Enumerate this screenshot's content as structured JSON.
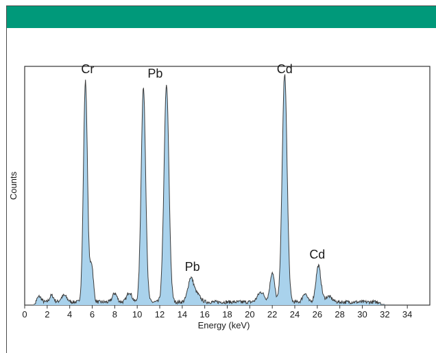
{
  "header": {
    "color": "#00997a"
  },
  "chart_data": {
    "type": "area",
    "title": "",
    "xlabel": "Energy (keV)",
    "ylabel": "Counts",
    "xlim": [
      0,
      36
    ],
    "ylim": [
      0,
      105
    ],
    "grid": false,
    "legend": "none",
    "fill_color": "#a9d2ec",
    "line_color": "#3a3a3a",
    "x_ticks": [
      "0",
      "2",
      "4",
      "6",
      "8",
      "10",
      "12",
      "14",
      "16",
      "18",
      "20",
      "22",
      "24",
      "26",
      "28",
      "30",
      "32",
      "34"
    ],
    "peaks": [
      {
        "center": 1.3,
        "height": 2.5,
        "width": 0.18
      },
      {
        "center": 2.4,
        "height": 3.0,
        "width": 0.18
      },
      {
        "center": 3.5,
        "height": 3.0,
        "width": 0.25
      },
      {
        "center": 5.4,
        "height": 100,
        "width": 0.18
      },
      {
        "center": 5.95,
        "height": 17,
        "width": 0.15
      },
      {
        "center": 8.0,
        "height": 4,
        "width": 0.2
      },
      {
        "center": 9.3,
        "height": 4.5,
        "width": 0.22
      },
      {
        "center": 10.55,
        "height": 97,
        "width": 0.2
      },
      {
        "center": 12.6,
        "height": 98,
        "width": 0.22
      },
      {
        "center": 14.75,
        "height": 10.5,
        "width": 0.25
      },
      {
        "center": 15.3,
        "height": 3.5,
        "width": 0.3
      },
      {
        "center": 21.0,
        "height": 4.5,
        "width": 0.3
      },
      {
        "center": 22.0,
        "height": 13.5,
        "width": 0.2
      },
      {
        "center": 23.1,
        "height": 103,
        "width": 0.22
      },
      {
        "center": 24.9,
        "height": 4.0,
        "width": 0.2
      },
      {
        "center": 26.1,
        "height": 16.5,
        "width": 0.22
      },
      {
        "center": 27.0,
        "height": 2.5,
        "width": 0.3
      }
    ],
    "annotations": [
      {
        "text": "Cr",
        "x": 5.6,
        "y": 105
      },
      {
        "text": "Pb",
        "x": 11.6,
        "y": 103
      },
      {
        "text": "Pb",
        "x": 14.9,
        "y": 15.5
      },
      {
        "text": "Cd",
        "x": 23.1,
        "y": 105
      },
      {
        "text": "Cd",
        "x": 26.0,
        "y": 21
      }
    ]
  }
}
